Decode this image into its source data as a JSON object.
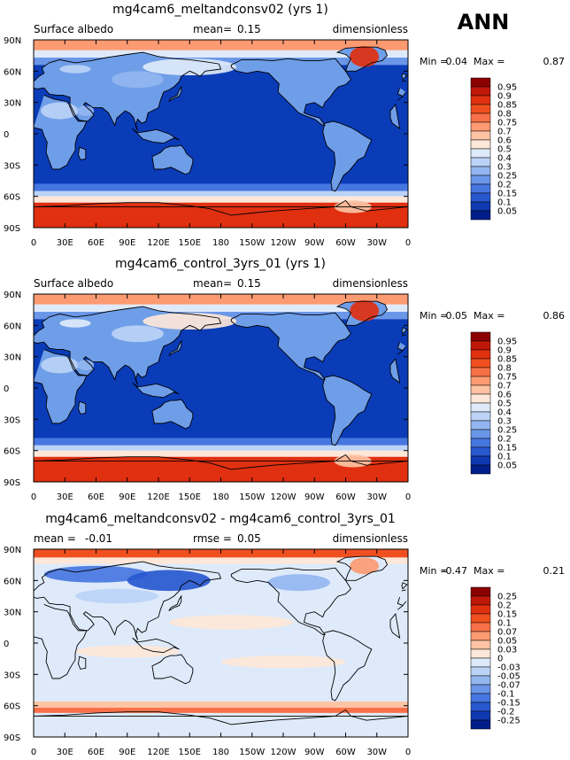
{
  "season_label": "ANN",
  "ocean_color": "#0a3cb8",
  "land_color": "#6f9ee8",
  "lat_labels": [
    "90N",
    "60N",
    "30N",
    "0",
    "30S",
    "60S",
    "90S"
  ],
  "lon_labels": [
    "0",
    "30E",
    "60E",
    "90E",
    "120E",
    "150E",
    "180",
    "150W",
    "120W",
    "90W",
    "60W",
    "30W",
    "0"
  ],
  "panels": [
    {
      "title": "mg4cam6_meltandconsv02 (yrs 1)",
      "left_text": "Surface albedo",
      "mean_label": "mean=",
      "mean_value": "0.15",
      "units": "dimensionless",
      "min_label": "Min =",
      "min_value": "0.04",
      "max_label": "Max =",
      "max_value": "0.87",
      "colorbar": {
        "levels": [
          "0.95",
          "0.9",
          "0.85",
          "0.8",
          "0.75",
          "0.7",
          "0.6",
          "0.5",
          "0.4",
          "0.3",
          "0.25",
          "0.2",
          "0.15",
          "0.1",
          "0.05"
        ],
        "colors": [
          "#8b0000",
          "#c01808",
          "#e03010",
          "#f05020",
          "#f87048",
          "#fc9a72",
          "#fdc3a3",
          "#fde7d8",
          "#deeafa",
          "#bbd3f6",
          "#93b6f0",
          "#6a96e8",
          "#4676e0",
          "#2858cf",
          "#1038b0",
          "#001e8a"
        ]
      },
      "bands": [
        {
          "lat0": 90,
          "lat1": 80,
          "color": "#fc9a72"
        },
        {
          "lat0": 80,
          "lat1": 73,
          "color": "#deeafa"
        },
        {
          "lat0": 73,
          "lat1": 66,
          "color": "#6a96e8"
        },
        {
          "lat0": 66,
          "lat1": -48,
          "color": "#0a3cb8"
        },
        {
          "lat0": -48,
          "lat1": -55,
          "color": "#4676e0"
        },
        {
          "lat0": -55,
          "lat1": -60,
          "color": "#bbd3f6"
        },
        {
          "lat0": -60,
          "lat1": -66,
          "color": "#fde7d8"
        },
        {
          "lat0": -66,
          "lat1": -90,
          "color": "#e03010"
        }
      ],
      "patches": [
        {
          "lon": 150,
          "lat": 64,
          "rlon": 45,
          "rlat": 8,
          "color": "#deeafa"
        },
        {
          "lon": 100,
          "lat": 52,
          "rlon": 25,
          "rlat": 8,
          "color": "#93b6f0"
        },
        {
          "lon": 40,
          "lat": 62,
          "rlon": 15,
          "rlat": 4,
          "color": "#bbd3f6"
        },
        {
          "lon": 318,
          "lat": 74,
          "rlon": 14,
          "rlat": 10,
          "color": "#e03010"
        },
        {
          "lon": 25,
          "lat": 22,
          "rlon": 18,
          "rlat": 8,
          "color": "#bbd3f6"
        },
        {
          "lon": 50,
          "lat": 22,
          "rlon": 8,
          "rlat": 5,
          "color": "#93b6f0"
        },
        {
          "lon": 307,
          "lat": -70,
          "rlon": 18,
          "rlat": 6,
          "color": "#fdc3a3"
        }
      ]
    },
    {
      "title": "mg4cam6_control_3yrs_01 (yrs 1)",
      "left_text": "Surface albedo",
      "mean_label": "mean=",
      "mean_value": "0.15",
      "units": "dimensionless",
      "min_label": "Min =",
      "min_value": "0.05",
      "max_label": "Max =",
      "max_value": "0.86",
      "colorbar": {
        "levels": [
          "0.95",
          "0.9",
          "0.85",
          "0.8",
          "0.75",
          "0.7",
          "0.6",
          "0.5",
          "0.4",
          "0.3",
          "0.25",
          "0.2",
          "0.15",
          "0.1",
          "0.05"
        ],
        "colors": [
          "#8b0000",
          "#c01808",
          "#e03010",
          "#f05020",
          "#f87048",
          "#fc9a72",
          "#fdc3a3",
          "#fde7d8",
          "#deeafa",
          "#bbd3f6",
          "#93b6f0",
          "#6a96e8",
          "#4676e0",
          "#2858cf",
          "#1038b0",
          "#001e8a"
        ]
      },
      "bands": [
        {
          "lat0": 90,
          "lat1": 80,
          "color": "#fc9a72"
        },
        {
          "lat0": 80,
          "lat1": 73,
          "color": "#deeafa"
        },
        {
          "lat0": 73,
          "lat1": 66,
          "color": "#6a96e8"
        },
        {
          "lat0": 66,
          "lat1": -48,
          "color": "#0a3cb8"
        },
        {
          "lat0": -48,
          "lat1": -55,
          "color": "#4676e0"
        },
        {
          "lat0": -55,
          "lat1": -60,
          "color": "#bbd3f6"
        },
        {
          "lat0": -60,
          "lat1": -66,
          "color": "#fde7d8"
        },
        {
          "lat0": -66,
          "lat1": -90,
          "color": "#e03010"
        }
      ],
      "patches": [
        {
          "lon": 150,
          "lat": 64,
          "rlon": 45,
          "rlat": 8,
          "color": "#fde7d8"
        },
        {
          "lon": 100,
          "lat": 52,
          "rlon": 25,
          "rlat": 8,
          "color": "#bbd3f6"
        },
        {
          "lon": 40,
          "lat": 62,
          "rlon": 15,
          "rlat": 4,
          "color": "#deeafa"
        },
        {
          "lon": 318,
          "lat": 74,
          "rlon": 14,
          "rlat": 10,
          "color": "#e03010"
        },
        {
          "lon": 25,
          "lat": 22,
          "rlon": 18,
          "rlat": 8,
          "color": "#bbd3f6"
        },
        {
          "lon": 50,
          "lat": 22,
          "rlon": 8,
          "rlat": 5,
          "color": "#93b6f0"
        },
        {
          "lon": 307,
          "lat": -70,
          "rlon": 18,
          "rlat": 6,
          "color": "#fdc3a3"
        }
      ]
    },
    {
      "title": "mg4cam6_meltandconsv02 - mg4cam6_control_3yrs_01",
      "left_text": "mean =",
      "left_value": "-0.01",
      "rmse_label": "rmse =",
      "rmse_value": "0.05",
      "units": "dimensionless",
      "min_label": "Min =",
      "min_value": "-0.47",
      "max_label": "Max =",
      "max_value": "0.21",
      "colorbar": {
        "levels": [
          "0.25",
          "0.2",
          "0.15",
          "0.1",
          "0.07",
          "0.05",
          "0.03",
          "0",
          "-0.03",
          "-0.05",
          "-0.07",
          "-0.1",
          "-0.15",
          "-0.2",
          "-0.25"
        ],
        "colors": [
          "#8b0000",
          "#c01808",
          "#e03010",
          "#f05020",
          "#f87048",
          "#fc9a72",
          "#fdc3a3",
          "#fde7d8",
          "#deeafa",
          "#bbd3f6",
          "#93b6f0",
          "#6a96e8",
          "#4676e0",
          "#2858cf",
          "#1038b0",
          "#001e8a"
        ]
      },
      "bands": [
        {
          "lat0": 90,
          "lat1": 82,
          "color": "#f05020"
        },
        {
          "lat0": 82,
          "lat1": 76,
          "color": "#fde7d8"
        },
        {
          "lat0": 76,
          "lat1": 68,
          "color": "#deeafa"
        },
        {
          "lat0": 68,
          "lat1": -56,
          "color": "#deeafa"
        },
        {
          "lat0": -56,
          "lat1": -62,
          "color": "#fdc3a3"
        },
        {
          "lat0": -62,
          "lat1": -67,
          "color": "#f87048"
        },
        {
          "lat0": -67,
          "lat1": -90,
          "color": "#deeafa"
        }
      ],
      "patches": [
        {
          "lon": 60,
          "lat": 66,
          "rlon": 50,
          "rlat": 8,
          "color": "#4676e0"
        },
        {
          "lon": 130,
          "lat": 60,
          "rlon": 40,
          "rlat": 10,
          "color": "#2858cf"
        },
        {
          "lon": 255,
          "lat": 58,
          "rlon": 30,
          "rlat": 8,
          "color": "#93b6f0"
        },
        {
          "lon": 80,
          "lat": 45,
          "rlon": 40,
          "rlat": 7,
          "color": "#bbd3f6"
        },
        {
          "lon": 190,
          "lat": 20,
          "rlon": 60,
          "rlat": 7,
          "color": "#fde7d8"
        },
        {
          "lon": 240,
          "lat": -18,
          "rlon": 60,
          "rlat": 6,
          "color": "#fde7d8"
        },
        {
          "lon": 90,
          "lat": -8,
          "rlon": 50,
          "rlat": 6,
          "color": "#fde7d8"
        },
        {
          "lon": 318,
          "lat": 74,
          "rlon": 14,
          "rlat": 8,
          "color": "#fc9a72"
        }
      ]
    }
  ]
}
